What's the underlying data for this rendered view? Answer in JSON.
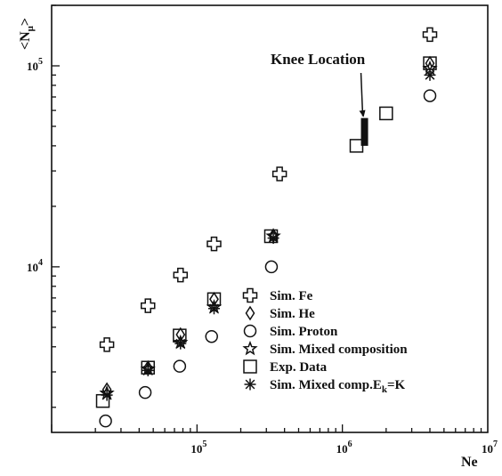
{
  "chart_data": {
    "type": "scatter",
    "xscale": "log",
    "yscale": "log",
    "xlim": [
      10000,
      10000000
    ],
    "ylim": [
      1500,
      200000
    ],
    "xlabel": "Ne",
    "ylabel": "<N_μ>",
    "x_ticks": [
      {
        "value": 100000,
        "base": "10",
        "exp": "5"
      },
      {
        "value": 1000000,
        "base": "10",
        "exp": "6"
      },
      {
        "value": 10000000,
        "base": "10",
        "exp": "7"
      }
    ],
    "y_ticks": [
      {
        "value": 10000,
        "base": "10",
        "exp": "4"
      },
      {
        "value": 100000,
        "base": "10",
        "exp": "5"
      }
    ],
    "grid": false,
    "legend_position": "bottom-right",
    "series": [
      {
        "name": "Sim. Fe",
        "marker": "cross",
        "points": [
          [
            24000,
            4100
          ],
          [
            46000,
            6400
          ],
          [
            77000,
            9100
          ],
          [
            131000,
            13000
          ],
          [
            370000,
            29000
          ],
          [
            4000000,
            143000
          ]
        ]
      },
      {
        "name": "Sim. He",
        "marker": "diamond",
        "points": [
          [
            24000,
            2450
          ],
          [
            46000,
            3150
          ],
          [
            77000,
            4600
          ],
          [
            131000,
            6900
          ],
          [
            335000,
            14300
          ],
          [
            4000000,
            103000
          ]
        ]
      },
      {
        "name": "Sim. Proton",
        "marker": "circle",
        "points": [
          [
            23500,
            1710
          ],
          [
            44000,
            2370
          ],
          [
            76000,
            3200
          ],
          [
            126000,
            4500
          ],
          [
            325000,
            10000
          ],
          [
            4000000,
            71000
          ]
        ]
      },
      {
        "name": "Sim. Mixed composition",
        "marker": "star",
        "points": [
          [
            24000,
            2350
          ],
          [
            46000,
            3100
          ],
          [
            77000,
            4200
          ],
          [
            131000,
            6300
          ],
          [
            335000,
            14200
          ],
          [
            4000000,
            97000
          ]
        ]
      },
      {
        "name": "Exp. Data",
        "marker": "square",
        "points": [
          [
            22500,
            2150
          ],
          [
            46000,
            3150
          ],
          [
            76000,
            4550
          ],
          [
            131000,
            6900
          ],
          [
            323000,
            14200
          ],
          [
            1250000,
            40000
          ],
          [
            2000000,
            58000
          ],
          [
            4000000,
            103000
          ]
        ]
      },
      {
        "name": "Sim. Mixed comp.E",
        "name_subscript": "k",
        "name_suffix": "=K",
        "marker": "asterisk",
        "points": [
          [
            24000,
            2300
          ],
          [
            46000,
            3050
          ],
          [
            77000,
            4150
          ],
          [
            131000,
            6200
          ],
          [
            335000,
            13900
          ],
          [
            4000000,
            90000
          ]
        ]
      }
    ],
    "knee": {
      "label": "Knee Location",
      "x": 1420000,
      "y_range": [
        40000,
        55000
      ]
    }
  }
}
